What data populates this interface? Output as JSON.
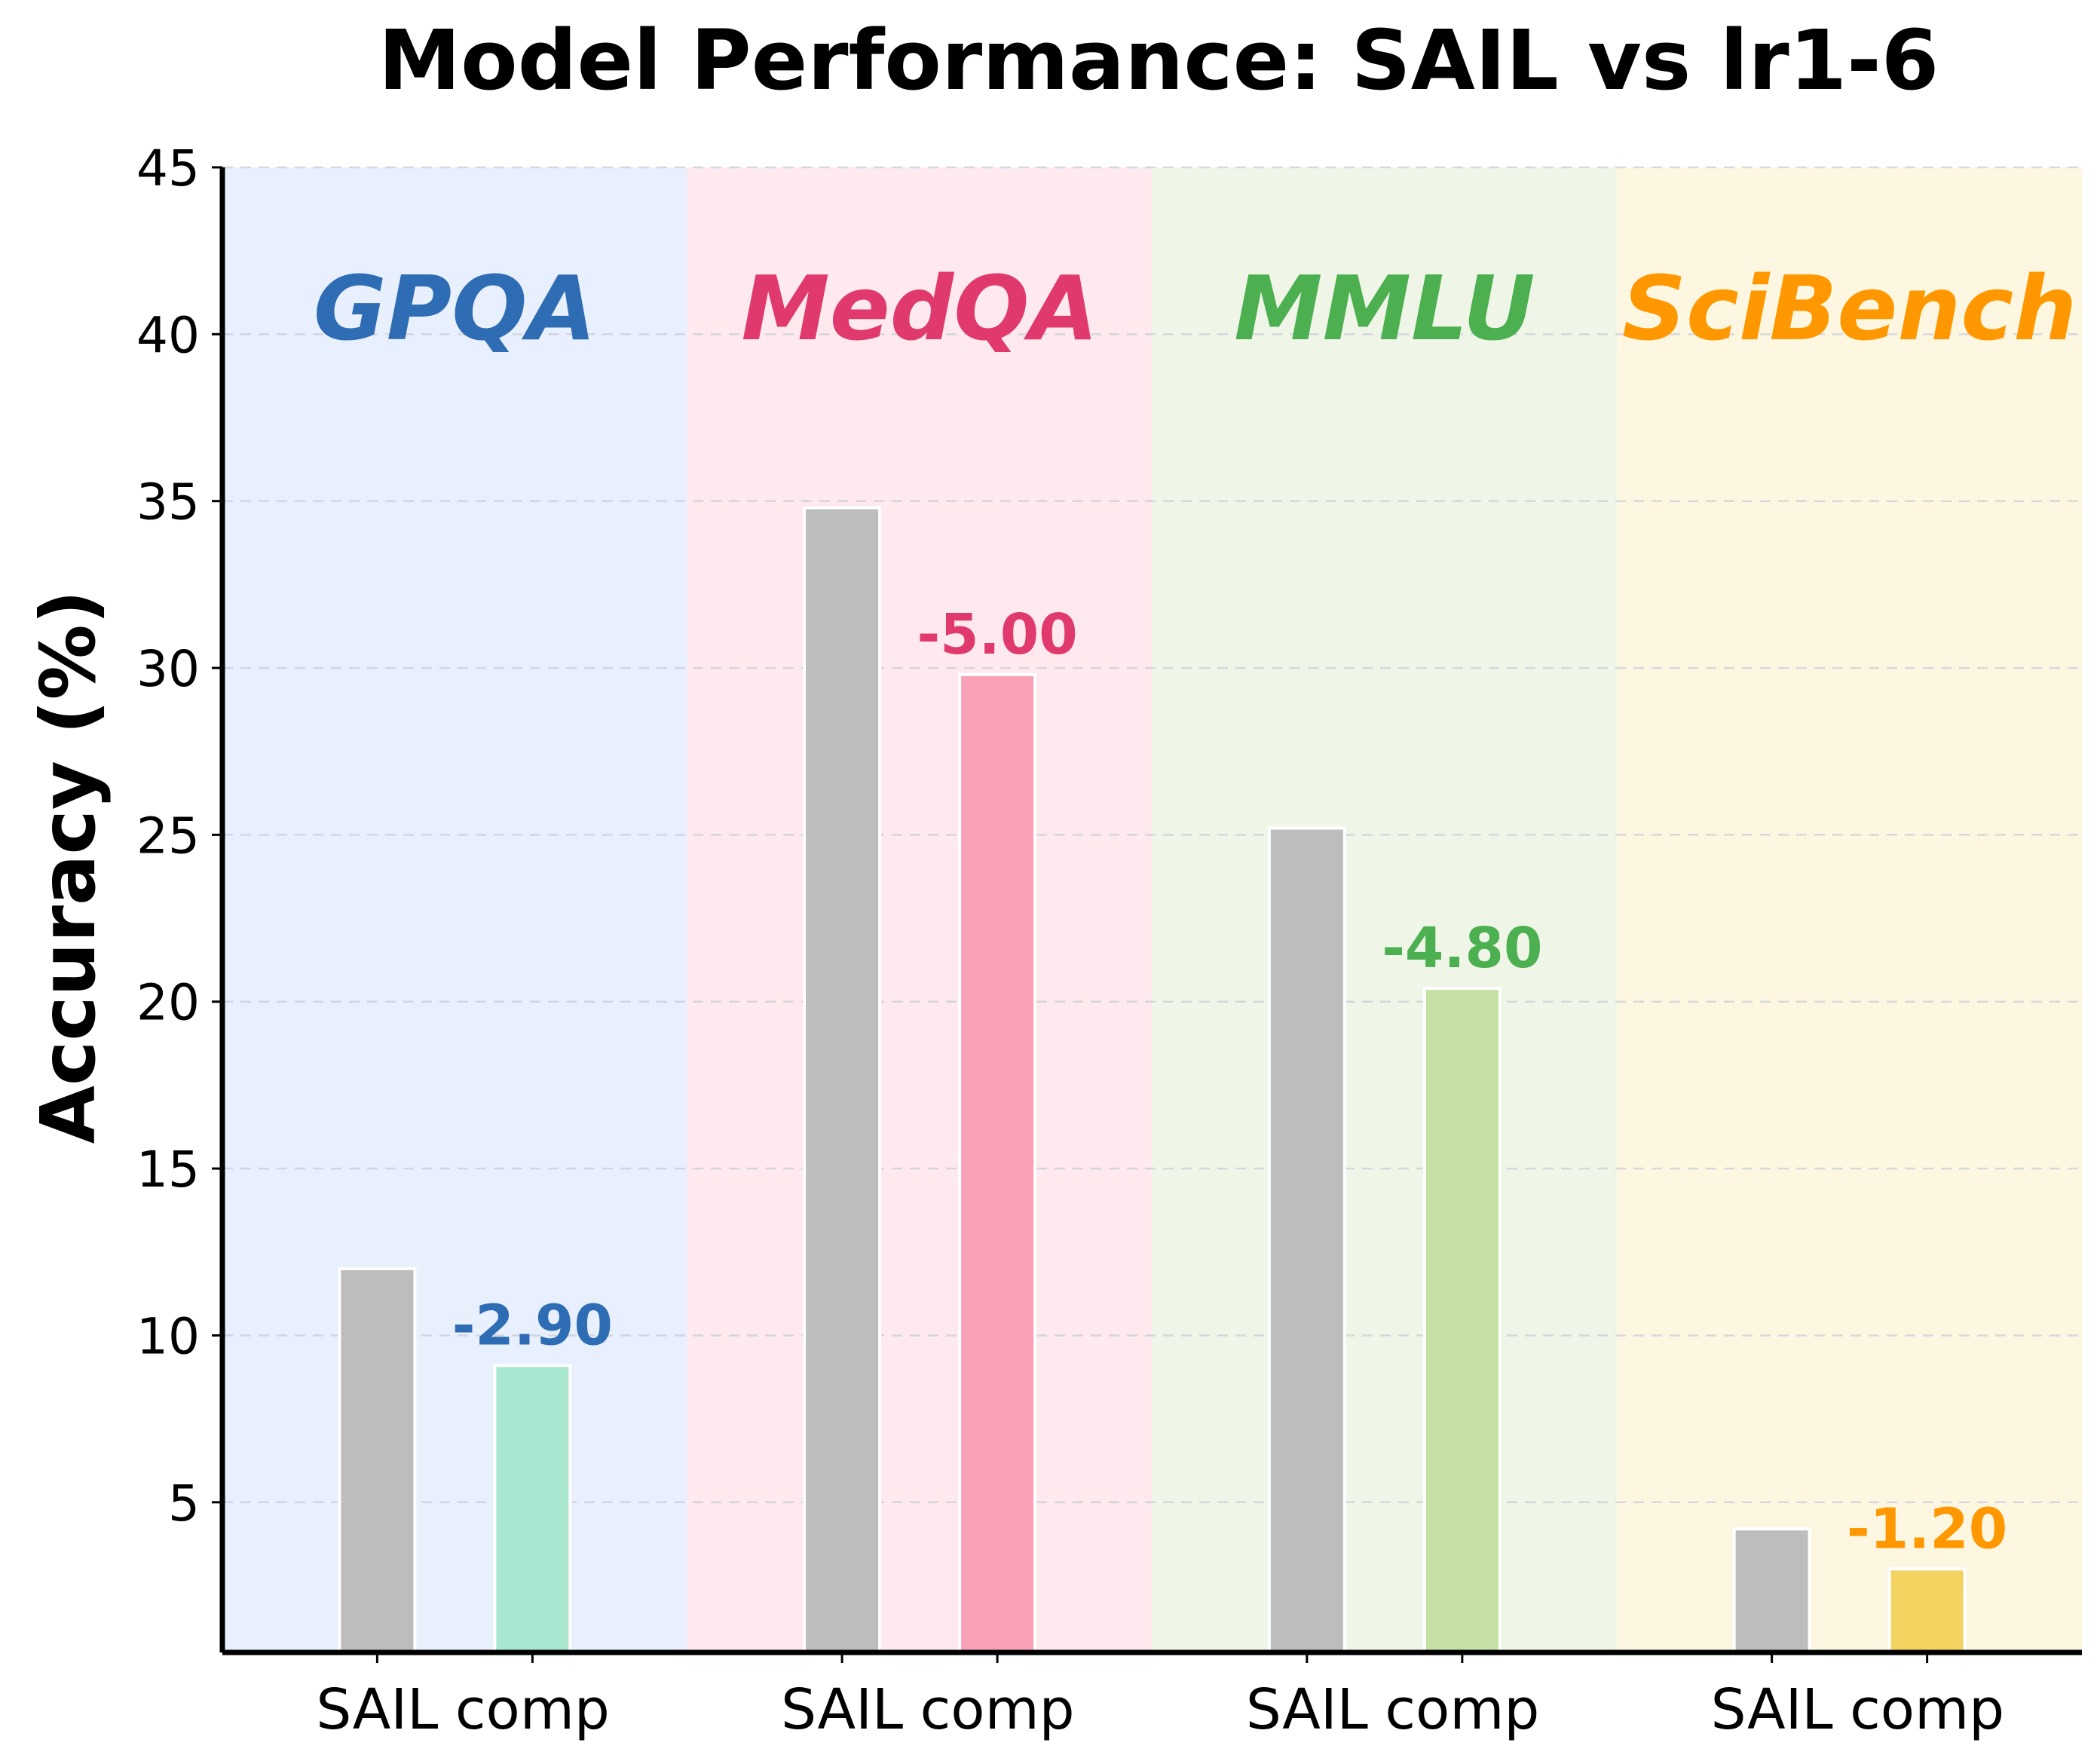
{
  "chart_data": {
    "type": "bar",
    "title": "Model Performance: SAIL vs lr1-6",
    "ylabel": "Accuracy (%)",
    "xlabel": "",
    "ylim": [
      0.5,
      45
    ],
    "yticks": [
      5,
      10,
      15,
      20,
      25,
      30,
      35,
      40,
      45
    ],
    "grid": true,
    "groups": [
      {
        "name": "GPQA",
        "color": "#2E6DB4",
        "bg": "#E8EFFD",
        "bars": [
          {
            "label": "SAIL",
            "value": 12.0,
            "color": "#BDBDBD"
          },
          {
            "label": "comp",
            "value": 9.1,
            "color": "#A8E6CF"
          }
        ],
        "diff": "-2.90"
      },
      {
        "name": "MedQA",
        "color": "#E0396E",
        "bg": "#FDE9EE",
        "bars": [
          {
            "label": "SAIL",
            "value": 34.8,
            "color": "#BDBDBD"
          },
          {
            "label": "comp",
            "value": 29.8,
            "color": "#F7A0B6"
          }
        ],
        "diff": "-5.00"
      },
      {
        "name": "MMLU",
        "color": "#4CAF50",
        "bg": "#EFF6E8",
        "bars": [
          {
            "label": "SAIL",
            "value": 25.2,
            "color": "#BDBDBD"
          },
          {
            "label": "comp",
            "value": 20.4,
            "color": "#C5E1A5"
          }
        ],
        "diff": "-4.80"
      },
      {
        "name": "SciBench",
        "color": "#FF9800",
        "bg": "#FDF7E2",
        "bars": [
          {
            "label": "SAIL",
            "value": 4.2,
            "color": "#BDBDBD"
          },
          {
            "label": "comp",
            "value": 3.0,
            "color": "#F3D35F"
          }
        ],
        "diff": "-1.20"
      }
    ]
  }
}
